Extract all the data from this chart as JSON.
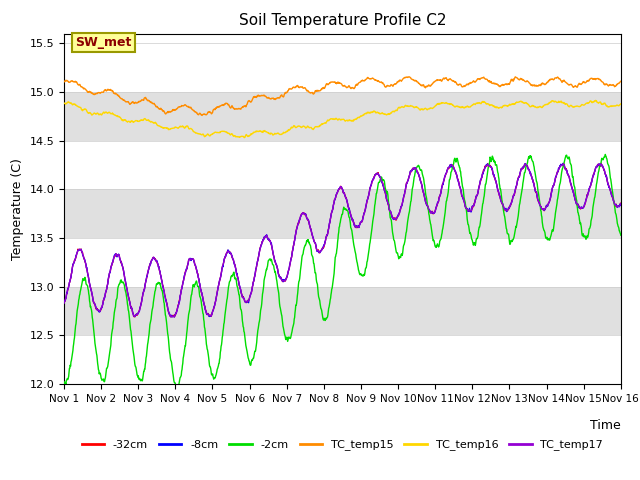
{
  "title": "Soil Temperature Profile C2",
  "xlabel": "Time",
  "ylabel": "Temperature (C)",
  "xlim": [
    0,
    15
  ],
  "ylim": [
    12.0,
    15.6
  ],
  "yticks": [
    12.0,
    12.5,
    13.0,
    13.5,
    14.0,
    14.5,
    15.0,
    15.5
  ],
  "xtick_labels": [
    "Nov 1",
    "Nov 2",
    "Nov 3",
    "Nov 4",
    "Nov 5",
    "Nov 6",
    "Nov 7",
    "Nov 8",
    "Nov 9",
    "Nov 10",
    "Nov 11",
    "Nov 12",
    "Nov 13",
    "Nov 14",
    "Nov 15",
    "Nov 16"
  ],
  "annotation_text": "SW_met",
  "annotation_color": "#8B0000",
  "annotation_bg": "#FFFF99",
  "annotation_border": "#999900",
  "line_colors": {
    "minus32cm": "#FF0000",
    "minus8cm": "#0000FF",
    "minus2cm": "#00DD00",
    "TC_temp15": "#FF8C00",
    "TC_temp16": "#FFD700",
    "TC_temp17": "#9400D3"
  },
  "legend_labels": [
    "-32cm",
    "-8cm",
    "-2cm",
    "TC_temp15",
    "TC_temp16",
    "TC_temp17"
  ],
  "bg_band_color": "#E0E0E0",
  "bg_band_ranges": [
    [
      14.5,
      15.0
    ],
    [
      13.5,
      14.0
    ],
    [
      12.5,
      13.0
    ]
  ]
}
